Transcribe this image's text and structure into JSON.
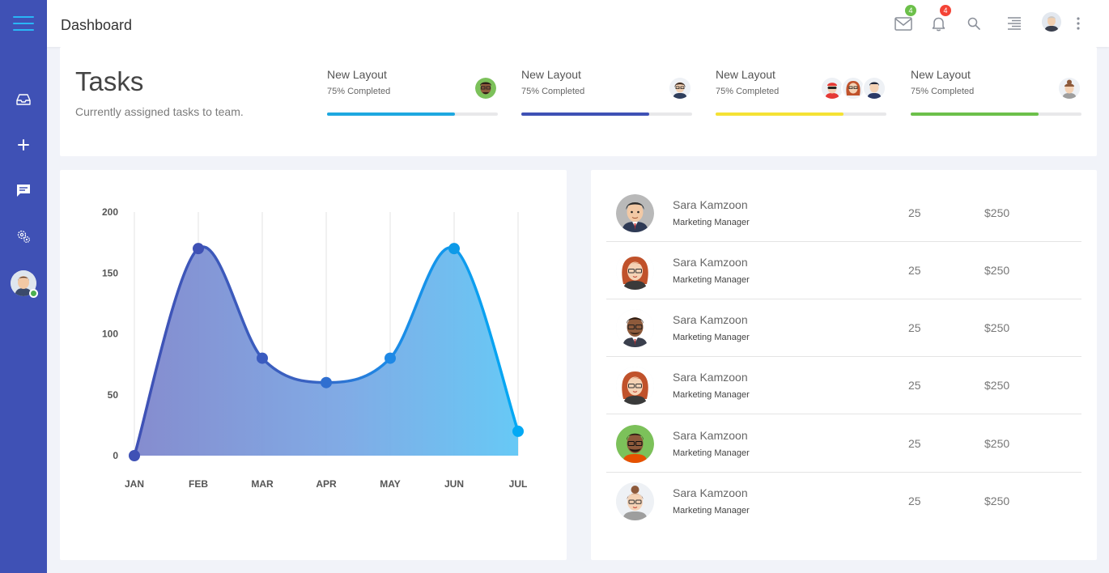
{
  "topbar": {
    "title": "Dashboard",
    "mail_badge": "4",
    "bell_badge": "4",
    "mail_badge_color": "#6cc04a",
    "bell_badge_color": "#f44336"
  },
  "sidebar": {
    "bg_color": "#3f51b5",
    "items": [
      {
        "icon": "inbox-icon"
      },
      {
        "icon": "plus-icon"
      },
      {
        "icon": "chat-icon"
      },
      {
        "icon": "settings-cogs-icon"
      }
    ]
  },
  "tasks": {
    "title": "Tasks",
    "subtitle": "Currently assigned tasks to team.",
    "items": [
      {
        "name": "New Layout",
        "status": "75% Completed",
        "progress": 0.75,
        "color": "#1ea8e0"
      },
      {
        "name": "New Layout",
        "status": "75% Completed",
        "progress": 0.75,
        "color": "#3f51b5"
      },
      {
        "name": "New Layout",
        "status": "75% Completed",
        "progress": 0.75,
        "color": "#f5e234"
      },
      {
        "name": "New Layout",
        "status": "75% Completed",
        "progress": 0.75,
        "color": "#6cc04a"
      }
    ]
  },
  "chart_data": {
    "type": "area",
    "categories": [
      "JAN",
      "FEB",
      "MAR",
      "APR",
      "MAY",
      "JUN",
      "JUL"
    ],
    "values": [
      0,
      170,
      80,
      60,
      80,
      170,
      20
    ],
    "y_ticks": [
      "0",
      "50",
      "100",
      "150",
      "200"
    ],
    "ylim": [
      0,
      200
    ],
    "grid": "vertical",
    "colors": {
      "start": "#3f51b5",
      "end": "#29b6f6"
    }
  },
  "people": [
    {
      "name": "Sara Kamzoon",
      "role": "Marketing Manager",
      "count": "25",
      "amount": "$250"
    },
    {
      "name": "Sara Kamzoon",
      "role": "Marketing Manager",
      "count": "25",
      "amount": "$250"
    },
    {
      "name": "Sara Kamzoon",
      "role": "Marketing Manager",
      "count": "25",
      "amount": "$250"
    },
    {
      "name": "Sara Kamzoon",
      "role": "Marketing Manager",
      "count": "25",
      "amount": "$250"
    },
    {
      "name": "Sara Kamzoon",
      "role": "Marketing Manager",
      "count": "25",
      "amount": "$250"
    },
    {
      "name": "Sara Kamzoon",
      "role": "Marketing Manager",
      "count": "25",
      "amount": "$250"
    }
  ]
}
